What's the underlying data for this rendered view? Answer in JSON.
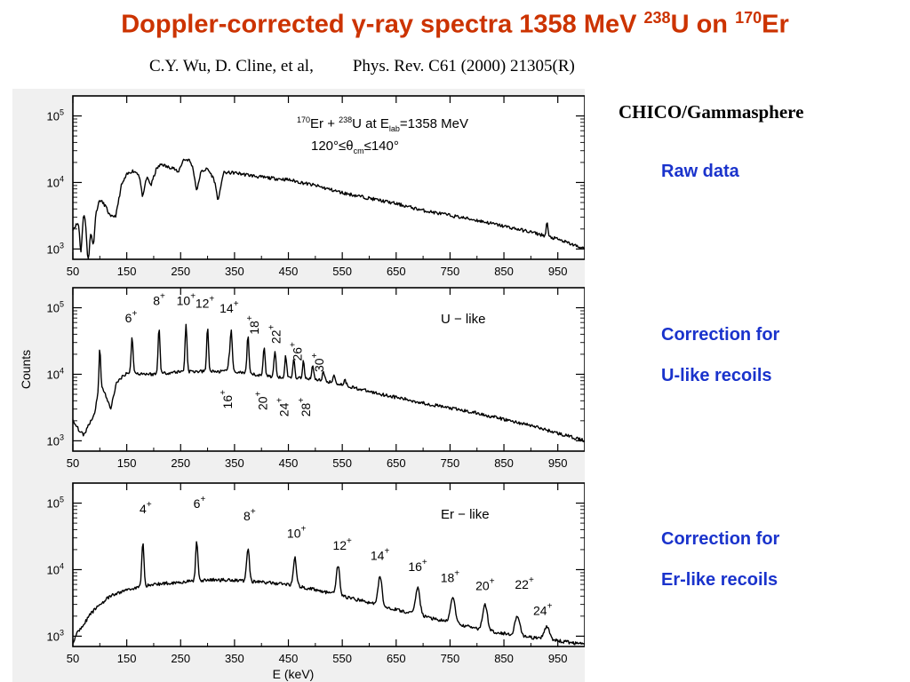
{
  "header": {
    "title_main": "Doppler-corrected γ-ray spectra 1358 MeV ",
    "title_sup1": "238",
    "title_mid": "U on  ",
    "title_sup2": "170",
    "title_end": "Er",
    "authors": "C.Y. Wu,  D. Cline, et al,",
    "reference": "Phys. Rev. C61 (2000) 21305(R)"
  },
  "sidebar": {
    "instrument": "CHICO/Gammasphere",
    "raw_label": "Raw data",
    "u_label_1": "Correction for",
    "u_label_2": "U-like recoils",
    "er_label_1": "Correction for",
    "er_label_2": "Er-like recoils"
  },
  "colors": {
    "title": "#cc3300",
    "side_labels": "#1a33cc",
    "curve": "#000000",
    "panel": "#f0f0f0"
  },
  "chart_data": [
    {
      "type": "line",
      "panel": "raw",
      "xlabel": "",
      "ylabel": "",
      "xlim": [
        50,
        1000
      ],
      "ylog": true,
      "ylim": [
        700,
        200000
      ],
      "xticks": [
        50,
        150,
        250,
        350,
        450,
        550,
        650,
        750,
        850,
        950
      ],
      "yticks": [
        {
          "v": 1000,
          "base": "10",
          "exp": "3"
        },
        {
          "v": 10000,
          "base": "10",
          "exp": "4"
        },
        {
          "v": 100000,
          "base": "10",
          "exp": "5"
        }
      ],
      "annotation": {
        "a": "170",
        "b": "Er + ",
        "c": "238",
        "d": "U at E",
        "e": "lab",
        "f": "=1358 MeV",
        "g": "120°≤θ",
        "h": "cm",
        "i": "≤140°"
      },
      "continuum": [
        [
          50,
          2000
        ],
        [
          60,
          2500
        ],
        [
          70,
          3500
        ],
        [
          80,
          1500
        ],
        [
          90,
          3000
        ],
        [
          100,
          5500
        ],
        [
          110,
          4500
        ],
        [
          120,
          3000
        ],
        [
          130,
          3200
        ],
        [
          140,
          9000
        ],
        [
          150,
          13000
        ],
        [
          160,
          15000
        ],
        [
          170,
          14000
        ],
        [
          185,
          14000
        ],
        [
          195,
          9000
        ],
        [
          205,
          16000
        ],
        [
          215,
          19000
        ],
        [
          225,
          17000
        ],
        [
          235,
          17000
        ],
        [
          245,
          14000
        ],
        [
          255,
          22000
        ],
        [
          265,
          22000
        ],
        [
          280,
          14000
        ],
        [
          300,
          16000
        ],
        [
          320,
          9000
        ],
        [
          330,
          14000
        ],
        [
          350,
          14000
        ],
        [
          400,
          12000
        ],
        [
          450,
          11000
        ],
        [
          500,
          9000
        ],
        [
          550,
          7000
        ],
        [
          600,
          5800
        ],
        [
          650,
          4800
        ],
        [
          700,
          3800
        ],
        [
          750,
          3200
        ],
        [
          800,
          2700
        ],
        [
          850,
          2200
        ],
        [
          900,
          1800
        ],
        [
          950,
          1400
        ],
        [
          1000,
          1000
        ]
      ],
      "peaks": [
        {
          "e": 65,
          "h": -0.5,
          "w": 3
        },
        {
          "e": 78,
          "h": -0.4,
          "w": 3
        },
        {
          "e": 88,
          "h": -0.35,
          "w": 3
        },
        {
          "e": 180,
          "h": -0.35,
          "w": 5
        },
        {
          "e": 280,
          "h": -0.25,
          "w": 5
        },
        {
          "e": 320,
          "h": -0.22,
          "w": 5
        },
        {
          "e": 930,
          "h": 0.22,
          "w": 2
        }
      ]
    },
    {
      "type": "line",
      "panel": "U-like",
      "xlabel": "",
      "ylabel": "Counts",
      "xlim": [
        50,
        1000
      ],
      "ylog": true,
      "ylim": [
        700,
        200000
      ],
      "xticks": [
        50,
        150,
        250,
        350,
        450,
        550,
        650,
        750,
        850,
        950
      ],
      "yticks": [
        {
          "v": 1000,
          "base": "10",
          "exp": "3"
        },
        {
          "v": 10000,
          "base": "10",
          "exp": "4"
        },
        {
          "v": 100000,
          "base": "10",
          "exp": "5"
        }
      ],
      "annotation": {
        "text": "U − like"
      },
      "continuum": [
        [
          50,
          2000
        ],
        [
          60,
          1500
        ],
        [
          70,
          1200
        ],
        [
          80,
          1800
        ],
        [
          90,
          2500
        ],
        [
          100,
          8000
        ],
        [
          110,
          5000
        ],
        [
          120,
          3000
        ],
        [
          130,
          7000
        ],
        [
          140,
          9000
        ],
        [
          150,
          10500
        ],
        [
          200,
          10000
        ],
        [
          250,
          11000
        ],
        [
          300,
          11000
        ],
        [
          350,
          11000
        ],
        [
          400,
          9500
        ],
        [
          450,
          9000
        ],
        [
          500,
          8500
        ],
        [
          550,
          7000
        ],
        [
          600,
          5500
        ],
        [
          650,
          4500
        ],
        [
          700,
          3700
        ],
        [
          750,
          3100
        ],
        [
          800,
          2600
        ],
        [
          850,
          2100
        ],
        [
          900,
          1700
        ],
        [
          950,
          1300
        ],
        [
          1000,
          1000
        ]
      ],
      "peaks": [
        {
          "e": 100,
          "h": 0.5,
          "w": 2
        },
        {
          "e": 160,
          "h": 0.55,
          "w": 2.5
        },
        {
          "e": 210,
          "h": 0.7,
          "w": 2.5
        },
        {
          "e": 260,
          "h": 0.72,
          "w": 2.5
        },
        {
          "e": 300,
          "h": 0.65,
          "w": 2.5
        },
        {
          "e": 340,
          "h": 0.2,
          "w": 2.5
        },
        {
          "e": 344,
          "h": 0.6,
          "w": 2.5
        },
        {
          "e": 375,
          "h": 0.55,
          "w": 2.5
        },
        {
          "e": 405,
          "h": 0.45,
          "w": 2.5
        },
        {
          "e": 425,
          "h": 0.38,
          "w": 2.5
        },
        {
          "e": 445,
          "h": 0.32,
          "w": 2.5
        },
        {
          "e": 460,
          "h": 0.28,
          "w": 2.5
        },
        {
          "e": 478,
          "h": 0.25,
          "w": 2.5
        },
        {
          "e": 495,
          "h": 0.2,
          "w": 2.5
        },
        {
          "e": 515,
          "h": 0.15,
          "w": 2.5
        },
        {
          "e": 535,
          "h": 0.12,
          "w": 2.5
        },
        {
          "e": 555,
          "h": 0.08,
          "w": 3
        }
      ],
      "labels": [
        {
          "text": "6",
          "e": 158,
          "y": 60000,
          "sup": "+"
        },
        {
          "text": "8",
          "e": 210,
          "y": 110000,
          "sup": "+"
        },
        {
          "text": "10",
          "e": 260,
          "y": 110000,
          "sup": "+"
        },
        {
          "text": "12",
          "e": 295,
          "y": 100000,
          "sup": "+"
        },
        {
          "text": "14",
          "e": 340,
          "y": 85000,
          "sup": "+"
        },
        {
          "text": "18",
          "e": 395,
          "y": 55000,
          "sup": "+",
          "rot": true
        },
        {
          "text": "22",
          "e": 435,
          "y": 40000,
          "sup": "+",
          "rot": true
        },
        {
          "text": "26",
          "e": 475,
          "y": 22000,
          "sup": "+",
          "rot": true
        },
        {
          "text": "30",
          "e": 515,
          "y": 15000,
          "sup": "+",
          "rot": true
        },
        {
          "text": "16",
          "e": 345,
          "y": 4200,
          "sup": "+",
          "rot": true
        },
        {
          "text": "20",
          "e": 410,
          "y": 4000,
          "sup": "+",
          "rot": true
        },
        {
          "text": "24",
          "e": 450,
          "y": 3200,
          "sup": "+",
          "rot": true
        },
        {
          "text": "28",
          "e": 490,
          "y": 3200,
          "sup": "+",
          "rot": true
        }
      ]
    },
    {
      "type": "line",
      "panel": "Er-like",
      "xlabel": "E (keV)",
      "ylabel": "",
      "xlim": [
        50,
        1000
      ],
      "ylog": true,
      "ylim": [
        700,
        200000
      ],
      "xticks": [
        50,
        150,
        250,
        350,
        450,
        550,
        650,
        750,
        850,
        950
      ],
      "yticks": [
        {
          "v": 1000,
          "base": "10",
          "exp": "3"
        },
        {
          "v": 10000,
          "base": "10",
          "exp": "4"
        },
        {
          "v": 100000,
          "base": "10",
          "exp": "5"
        }
      ],
      "annotation": {
        "text": "Er − like"
      },
      "continuum": [
        [
          50,
          800
        ],
        [
          60,
          1200
        ],
        [
          70,
          1500
        ],
        [
          80,
          2000
        ],
        [
          90,
          2500
        ],
        [
          100,
          3000
        ],
        [
          120,
          4000
        ],
        [
          150,
          5000
        ],
        [
          200,
          6000
        ],
        [
          250,
          6500
        ],
        [
          300,
          7000
        ],
        [
          350,
          7000
        ],
        [
          400,
          6500
        ],
        [
          450,
          6000
        ],
        [
          500,
          5000
        ],
        [
          550,
          4000
        ],
        [
          600,
          3200
        ],
        [
          650,
          2500
        ],
        [
          700,
          2000
        ],
        [
          750,
          1600
        ],
        [
          800,
          1300
        ],
        [
          850,
          1100
        ],
        [
          900,
          950
        ],
        [
          950,
          850
        ],
        [
          1000,
          750
        ]
      ],
      "peaks": [
        {
          "e": 180,
          "h": 0.65,
          "w": 3
        },
        {
          "e": 280,
          "h": 0.58,
          "w": 3
        },
        {
          "e": 375,
          "h": 0.5,
          "w": 3.5
        },
        {
          "e": 462,
          "h": 0.42,
          "w": 4
        },
        {
          "e": 542,
          "h": 0.45,
          "w": 4.5
        },
        {
          "e": 620,
          "h": 0.45,
          "w": 5
        },
        {
          "e": 690,
          "h": 0.42,
          "w": 5.5
        },
        {
          "e": 755,
          "h": 0.4,
          "w": 6
        },
        {
          "e": 815,
          "h": 0.38,
          "w": 6
        },
        {
          "e": 875,
          "h": 0.3,
          "w": 6.5
        },
        {
          "e": 930,
          "h": 0.2,
          "w": 7
        }
      ],
      "labels": [
        {
          "text": "4",
          "e": 185,
          "y": 70000,
          "sup": "+"
        },
        {
          "text": "6",
          "e": 285,
          "y": 85000,
          "sup": "+"
        },
        {
          "text": "8",
          "e": 378,
          "y": 55000,
          "sup": "+"
        },
        {
          "text": "10",
          "e": 465,
          "y": 30000,
          "sup": "+"
        },
        {
          "text": "12",
          "e": 550,
          "y": 20000,
          "sup": "+"
        },
        {
          "text": "14",
          "e": 620,
          "y": 14000,
          "sup": "+"
        },
        {
          "text": "16",
          "e": 690,
          "y": 9500,
          "sup": "+"
        },
        {
          "text": "18",
          "e": 750,
          "y": 6500,
          "sup": "+"
        },
        {
          "text": "20",
          "e": 815,
          "y": 4900,
          "sup": "+"
        },
        {
          "text": "22",
          "e": 888,
          "y": 5200,
          "sup": "+"
        },
        {
          "text": "24",
          "e": 922,
          "y": 2100,
          "sup": "+"
        }
      ]
    }
  ]
}
